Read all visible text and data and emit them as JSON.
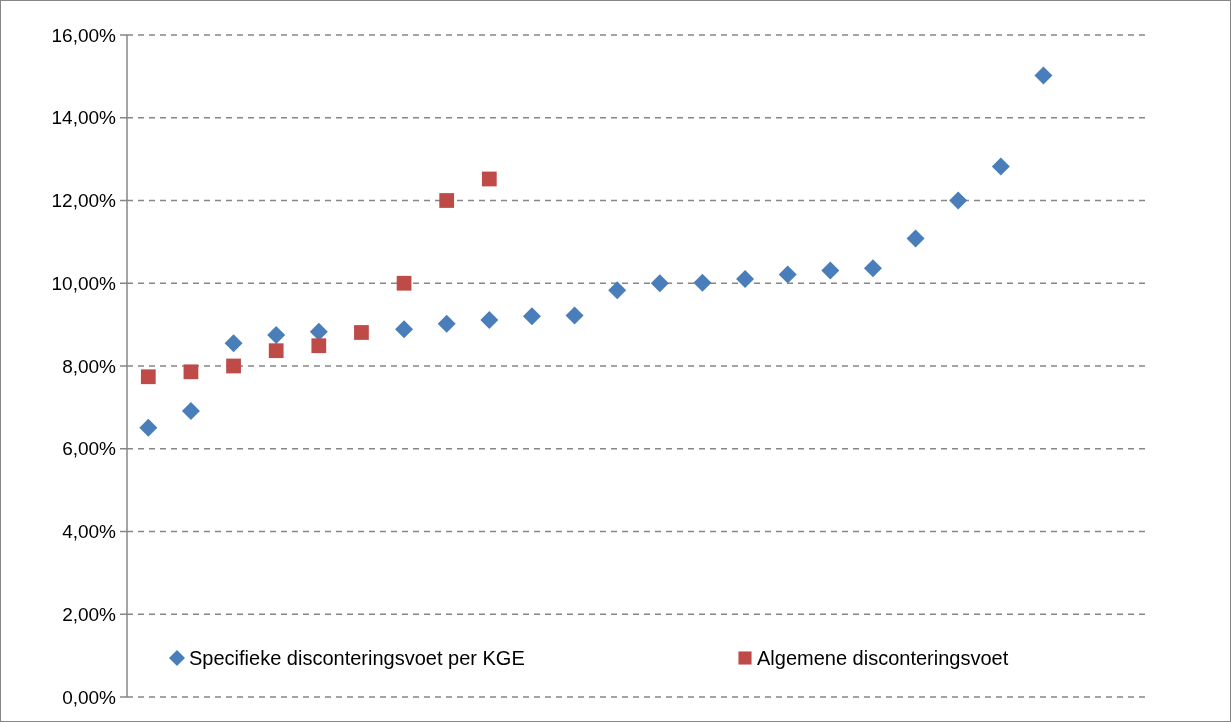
{
  "chart_data": {
    "type": "scatter",
    "categories": [
      null,
      null,
      null,
      null,
      null,
      null,
      null,
      null,
      null,
      null,
      null,
      null,
      null,
      null,
      null,
      null,
      null,
      null,
      null,
      null,
      null,
      null,
      null,
      null
    ],
    "series": [
      {
        "name": "Specifieke disconteringsvoet per KGE",
        "color": "#4a7ebb",
        "marker": "diamond",
        "values": [
          6.51,
          6.91,
          8.55,
          8.75,
          8.83,
          null,
          8.89,
          9.02,
          9.11,
          9.2,
          9.22,
          9.83,
          10.0,
          10.01,
          10.1,
          10.21,
          10.31,
          10.36,
          11.08,
          12.0,
          12.82,
          15.02,
          null,
          null
        ]
      },
      {
        "name": "Algemene disconteringsvoet",
        "color": "#be4b48",
        "marker": "square",
        "values": [
          7.74,
          7.86,
          8.0,
          8.37,
          8.49,
          8.81,
          10.0,
          12.0,
          12.52,
          null,
          null,
          null,
          null,
          null,
          null,
          null,
          null,
          null,
          null,
          null,
          null,
          null,
          null,
          null
        ]
      }
    ],
    "ylim": [
      0,
      16
    ],
    "yticks": [
      {
        "value": 0,
        "label": "0,00%"
      },
      {
        "value": 2,
        "label": "2,00%"
      },
      {
        "value": 4,
        "label": "4,00%"
      },
      {
        "value": 6,
        "label": "6,00%"
      },
      {
        "value": 8,
        "label": "8,00%"
      },
      {
        "value": 10,
        "label": "10,00%"
      },
      {
        "value": 12,
        "label": "12,00%"
      },
      {
        "value": 14,
        "label": "14,00%"
      },
      {
        "value": 16,
        "label": "16,00%"
      }
    ],
    "grid": "y",
    "legend": "bottom",
    "tick_labels": "y"
  }
}
